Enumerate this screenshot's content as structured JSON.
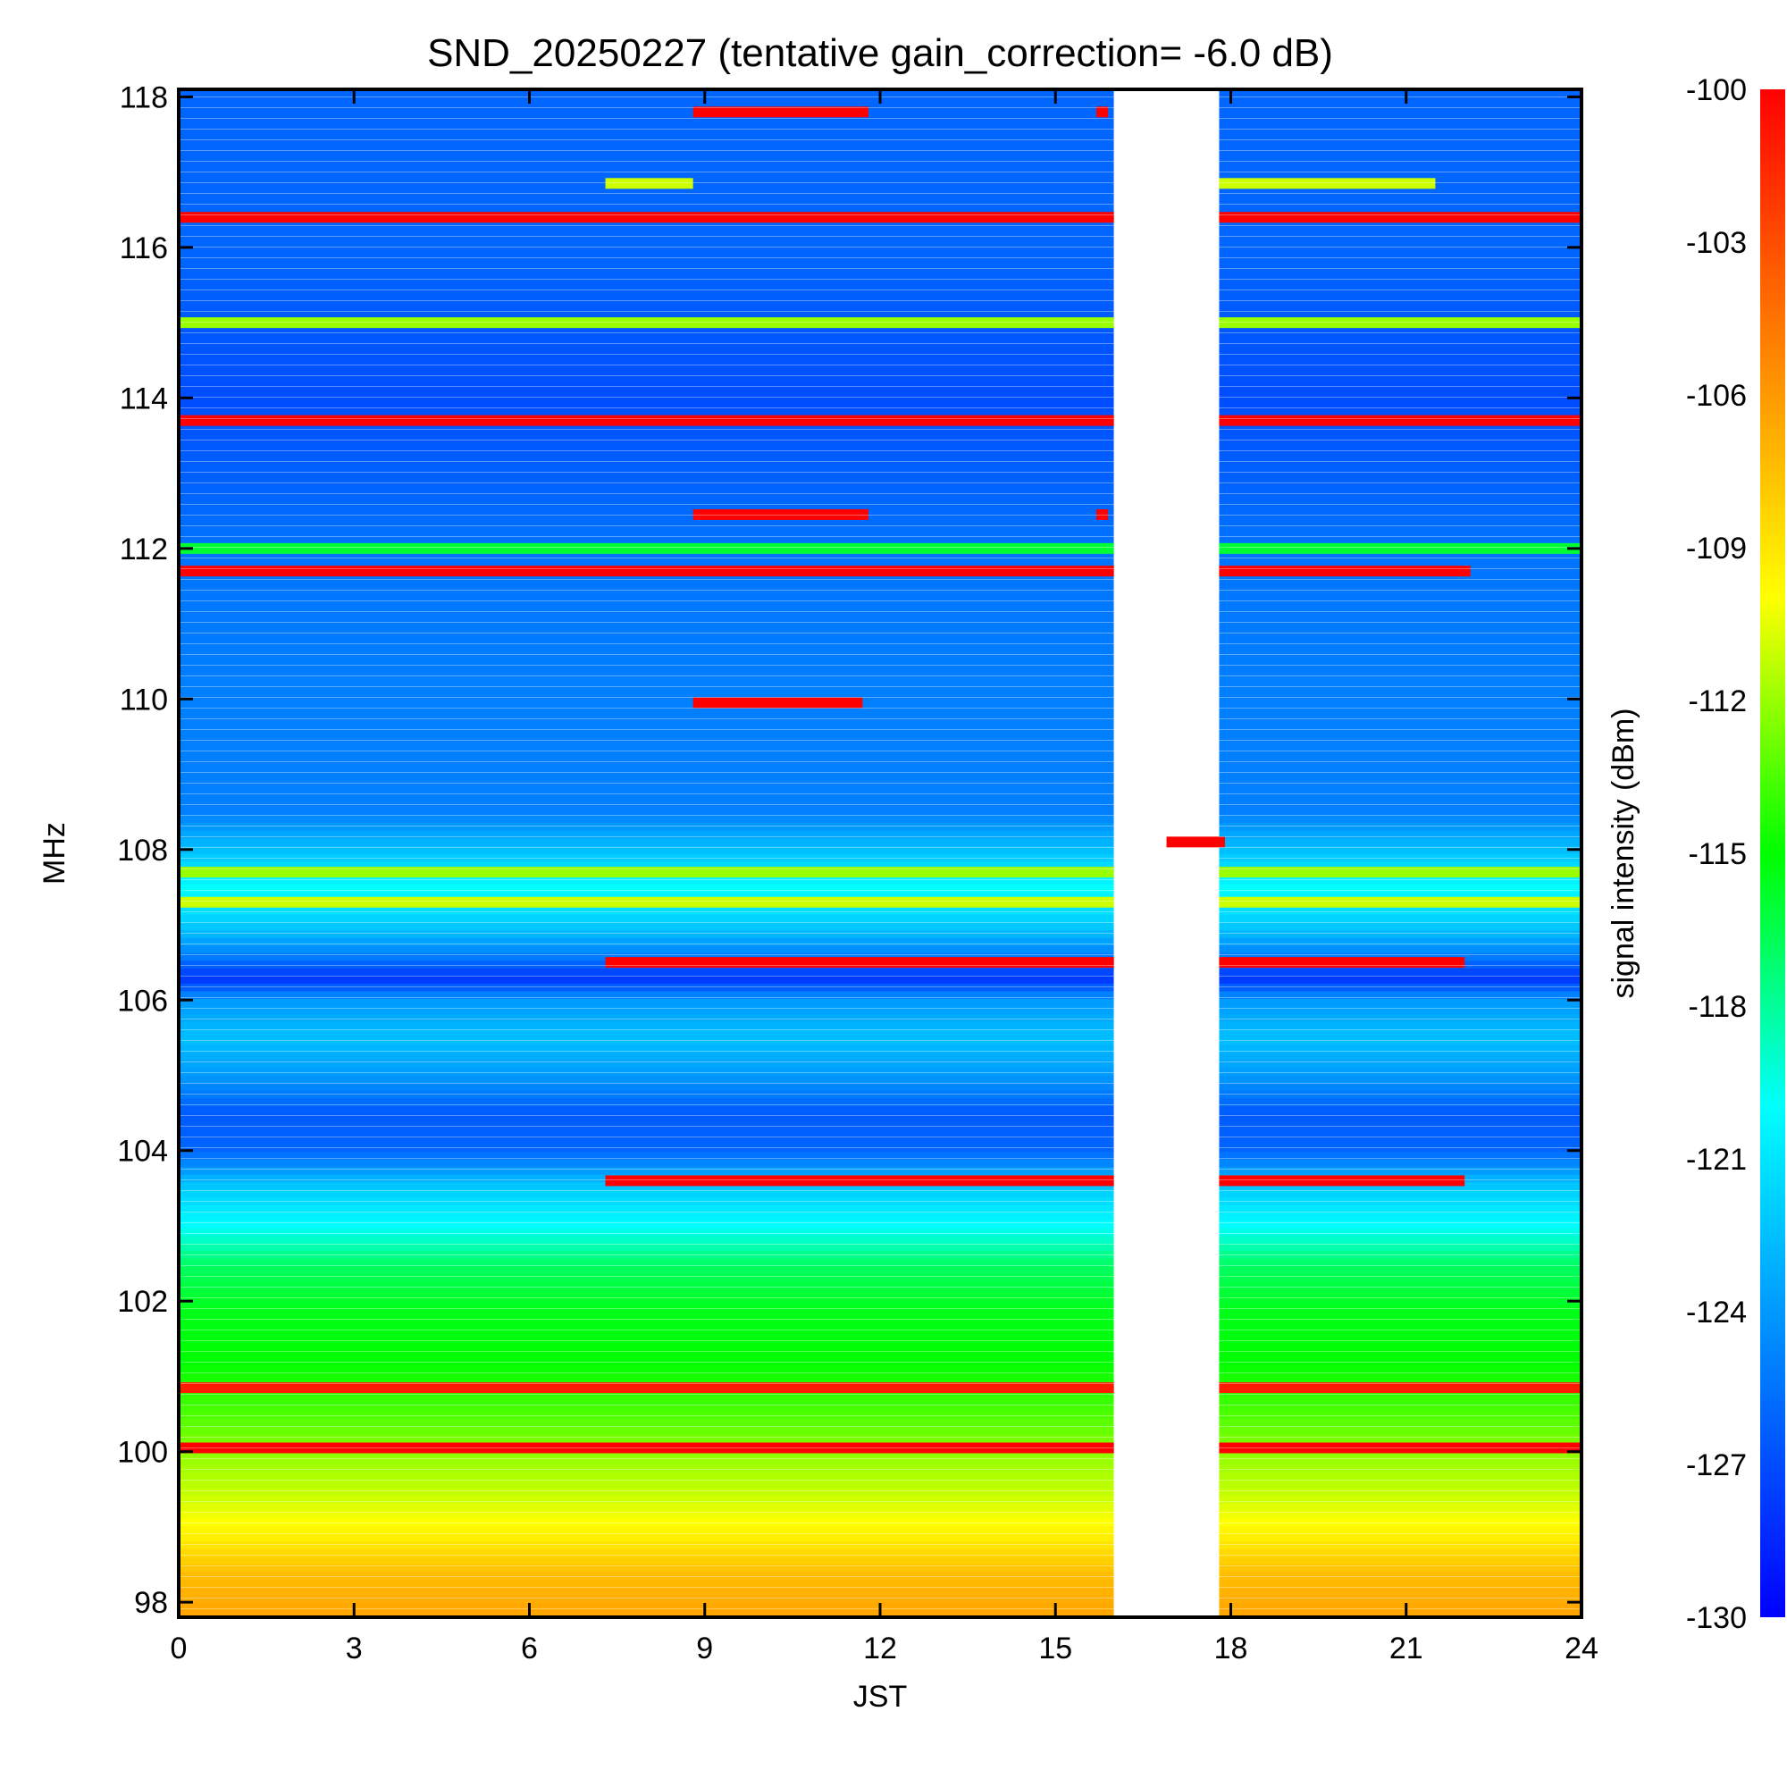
{
  "chart_data": {
    "type": "heatmap",
    "title": "SND_20250227 (tentative gain_correction= -6.0 dB)",
    "xlabel": "JST",
    "ylabel": "MHz",
    "xlim": [
      0,
      24
    ],
    "ylim": [
      97.8,
      118.1
    ],
    "x_ticks": [
      0,
      3,
      6,
      9,
      12,
      15,
      18,
      21,
      24
    ],
    "x_tick_labels": [
      "0",
      "3",
      "6",
      "9",
      "12",
      "15",
      "18",
      "21",
      "24"
    ],
    "y_ticks": [
      98,
      100,
      102,
      104,
      106,
      108,
      110,
      112,
      114,
      116,
      118
    ],
    "y_tick_labels": [
      "98",
      "100",
      "102",
      "104",
      "106",
      "108",
      "110",
      "112",
      "114",
      "116",
      "118"
    ],
    "colorbar": {
      "label": "signal intensity (dBm)",
      "range": [
        -130,
        -100
      ],
      "ticks": [
        -100,
        -103,
        -106,
        -109,
        -112,
        -115,
        -118,
        -121,
        -124,
        -127,
        -130
      ],
      "tick_labels": [
        "-100",
        "-103",
        "-106",
        "-109",
        "-112",
        "-115",
        "-118",
        "-121",
        "-124",
        "-127",
        "-130"
      ],
      "colormap": [
        "#0000ff",
        "#0080ff",
        "#00ffff",
        "#00ff00",
        "#ffff00",
        "#ff8000",
        "#ff0000"
      ]
    },
    "data_gap_hours": [
      16.0,
      17.8
    ],
    "band_profile": [
      {
        "mhz": 97.9,
        "dbm": -106.5
      },
      {
        "mhz": 98.4,
        "dbm": -107.5
      },
      {
        "mhz": 98.9,
        "dbm": -109.5
      },
      {
        "mhz": 99.4,
        "dbm": -111.0
      },
      {
        "mhz": 99.9,
        "dbm": -112.0
      },
      {
        "mhz": 100.5,
        "dbm": -113.5
      },
      {
        "mhz": 101.2,
        "dbm": -115.0
      },
      {
        "mhz": 101.9,
        "dbm": -115.5
      },
      {
        "mhz": 102.5,
        "dbm": -117.0
      },
      {
        "mhz": 103.0,
        "dbm": -120.0
      },
      {
        "mhz": 103.5,
        "dbm": -122.0
      },
      {
        "mhz": 104.0,
        "dbm": -126.0
      },
      {
        "mhz": 104.5,
        "dbm": -126.5
      },
      {
        "mhz": 105.0,
        "dbm": -124.0
      },
      {
        "mhz": 105.5,
        "dbm": -122.5
      },
      {
        "mhz": 106.0,
        "dbm": -124.0
      },
      {
        "mhz": 106.3,
        "dbm": -128.0
      },
      {
        "mhz": 106.6,
        "dbm": -125.0
      },
      {
        "mhz": 107.0,
        "dbm": -122.0
      },
      {
        "mhz": 107.5,
        "dbm": -120.0
      },
      {
        "mhz": 107.9,
        "dbm": -122.0
      },
      {
        "mhz": 108.5,
        "dbm": -125.0
      },
      {
        "mhz": 110.0,
        "dbm": -125.0
      },
      {
        "mhz": 112.0,
        "dbm": -125.5
      },
      {
        "mhz": 114.0,
        "dbm": -127.0
      },
      {
        "mhz": 116.0,
        "dbm": -126.0
      },
      {
        "mhz": 118.1,
        "dbm": -126.0
      }
    ],
    "strong_lines": [
      {
        "mhz": 116.4,
        "dbm": -100,
        "spans": [
          [
            0,
            16
          ],
          [
            17.8,
            24
          ]
        ]
      },
      {
        "mhz": 113.7,
        "dbm": -100,
        "spans": [
          [
            0,
            16
          ],
          [
            17.8,
            24
          ]
        ]
      },
      {
        "mhz": 111.7,
        "dbm": -100,
        "spans": [
          [
            0,
            16
          ],
          [
            17.8,
            22.1
          ]
        ]
      },
      {
        "mhz": 117.8,
        "dbm": -100,
        "spans": [
          [
            8.8,
            11.8
          ],
          [
            15.7,
            15.9
          ]
        ]
      },
      {
        "mhz": 112.45,
        "dbm": -100,
        "spans": [
          [
            8.8,
            11.8
          ],
          [
            15.7,
            15.9
          ]
        ]
      },
      {
        "mhz": 109.95,
        "dbm": -100,
        "spans": [
          [
            8.8,
            11.7
          ]
        ]
      },
      {
        "mhz": 108.1,
        "dbm": -100,
        "spans": [
          [
            16.9,
            17.9
          ]
        ]
      },
      {
        "mhz": 106.5,
        "dbm": -100,
        "spans": [
          [
            7.3,
            16
          ],
          [
            17.8,
            22.0
          ]
        ]
      },
      {
        "mhz": 103.6,
        "dbm": -100,
        "spans": [
          [
            7.3,
            16
          ],
          [
            17.8,
            22.0
          ]
        ]
      },
      {
        "mhz": 100.85,
        "dbm": -101,
        "spans": [
          [
            0,
            16
          ],
          [
            17.8,
            24
          ]
        ]
      },
      {
        "mhz": 100.05,
        "dbm": -100,
        "spans": [
          [
            0,
            16
          ],
          [
            17.8,
            24
          ]
        ]
      },
      {
        "mhz": 115.0,
        "dbm": -112,
        "spans": [
          [
            0,
            16
          ],
          [
            17.8,
            24
          ]
        ]
      },
      {
        "mhz": 112.0,
        "dbm": -116,
        "spans": [
          [
            0,
            16
          ],
          [
            17.8,
            24
          ]
        ]
      },
      {
        "mhz": 107.7,
        "dbm": -112,
        "spans": [
          [
            0,
            16
          ],
          [
            17.8,
            24
          ]
        ]
      },
      {
        "mhz": 107.3,
        "dbm": -111,
        "spans": [
          [
            0,
            16
          ],
          [
            17.8,
            24
          ]
        ]
      },
      {
        "mhz": 116.85,
        "dbm": -111,
        "spans": [
          [
            7.3,
            8.8
          ],
          [
            17.8,
            21.5
          ]
        ]
      }
    ]
  }
}
